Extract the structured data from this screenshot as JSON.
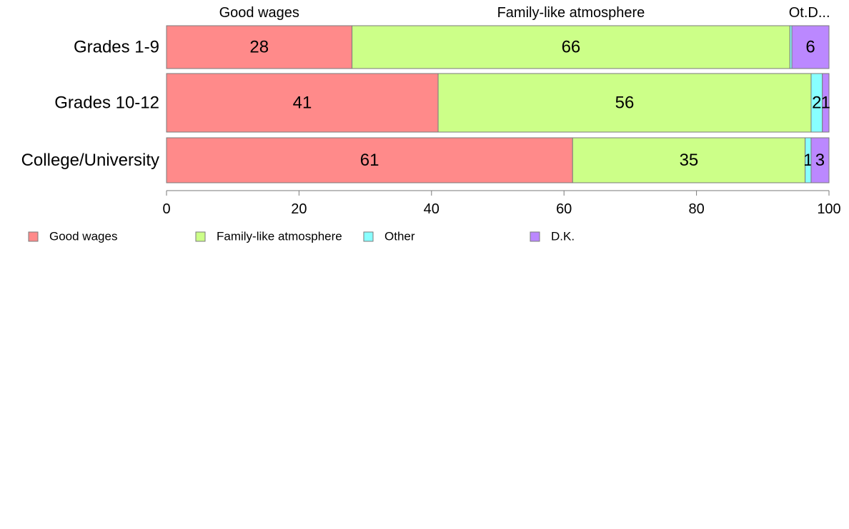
{
  "chart_data": {
    "type": "bar",
    "orientation": "horizontal",
    "stacked": true,
    "title": "",
    "xlabel": "",
    "ylabel": "",
    "xlim": [
      0,
      100
    ],
    "x_ticks": [
      0,
      20,
      40,
      60,
      80,
      100
    ],
    "grid": false,
    "legend_position": "bottom",
    "categories": [
      "Grades 1-9",
      "Grades 10-12",
      "College/University"
    ],
    "series": [
      {
        "name": "Good wages",
        "color": "#ff8a8a",
        "values": [
          28,
          41,
          61.3
        ],
        "labels": [
          "28",
          "41",
          "61"
        ]
      },
      {
        "name": "Family-like atmosphere",
        "color": "#ccff88",
        "values": [
          66.1,
          56.3,
          35.1
        ],
        "labels": [
          "66",
          "56",
          "35"
        ]
      },
      {
        "name": "Other",
        "color": "#88ffff",
        "values": [
          0.3,
          1.7,
          0.9
        ],
        "labels": [
          "",
          "2",
          "1"
        ]
      },
      {
        "name": "D.K.",
        "color": "#bb88ff",
        "values": [
          5.6,
          1.0,
          2.7
        ],
        "labels": [
          "6",
          "1",
          "3"
        ]
      }
    ],
    "top_labels": [
      "Good wages",
      "Family-like atmosphere",
      "Ot.D..."
    ]
  }
}
